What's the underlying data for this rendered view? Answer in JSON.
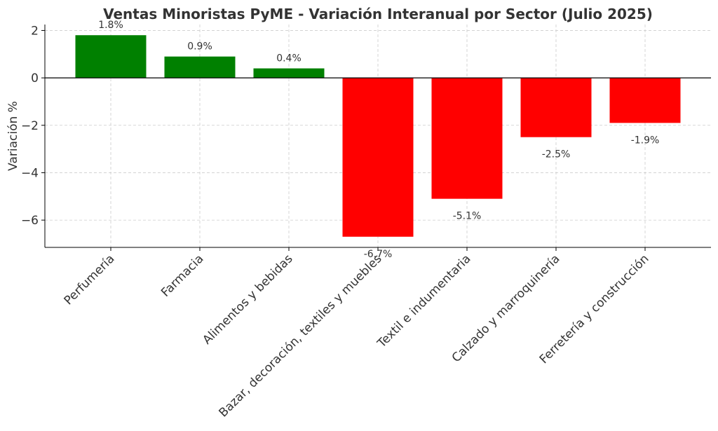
{
  "chart_data": {
    "type": "bar",
    "title": "Ventas Minoristas PyME - Variación Interanual por Sector (Julio 2025)",
    "xlabel": "",
    "ylabel": "Variación %",
    "categories": [
      "Perfumería",
      "Farmacia",
      "Alimentos y bebidas",
      "Bazar, decoración, textiles y muebles",
      "Textil e indumentaria",
      "Calzado y marroquinería",
      "Ferretería y construcción"
    ],
    "values": [
      1.8,
      0.9,
      0.4,
      -6.7,
      -5.1,
      -2.5,
      -1.9
    ],
    "value_labels": [
      "1.8%",
      "0.9%",
      "0.4%",
      "-6.7%",
      "-5.1%",
      "-2.5%",
      "-1.9%"
    ],
    "ylim": [
      -7.15,
      2.25
    ],
    "yticks": [
      2,
      0,
      -2,
      -4,
      -6
    ],
    "ytick_labels": [
      "2",
      "0",
      "−2",
      "−4",
      "−6"
    ],
    "grid": true,
    "colors": {
      "positive": "#008000",
      "negative": "#ff0000",
      "zero_line": "#000000",
      "grid": "#cccccc",
      "text": "#333333"
    }
  }
}
